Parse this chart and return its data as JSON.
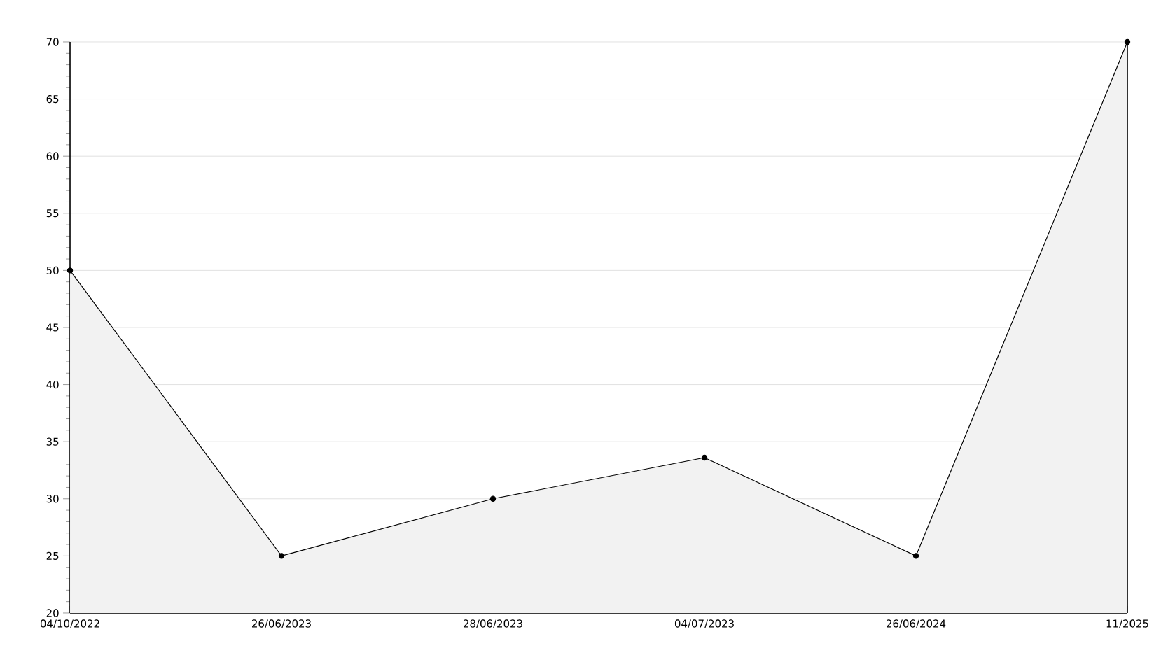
{
  "chart_data": {
    "type": "area",
    "categories": [
      "04/10/2022",
      "26/06/2023",
      "28/06/2023",
      "04/07/2023",
      "26/06/2024",
      "11/2025"
    ],
    "values": [
      50,
      25,
      30,
      33.6,
      25,
      70
    ],
    "color": "#000000",
    "ylim": [
      20,
      70
    ],
    "yticks": [
      20,
      25,
      30,
      35,
      40,
      45,
      50,
      55,
      60,
      65,
      70
    ],
    "grid": "y",
    "marker": "circle"
  }
}
